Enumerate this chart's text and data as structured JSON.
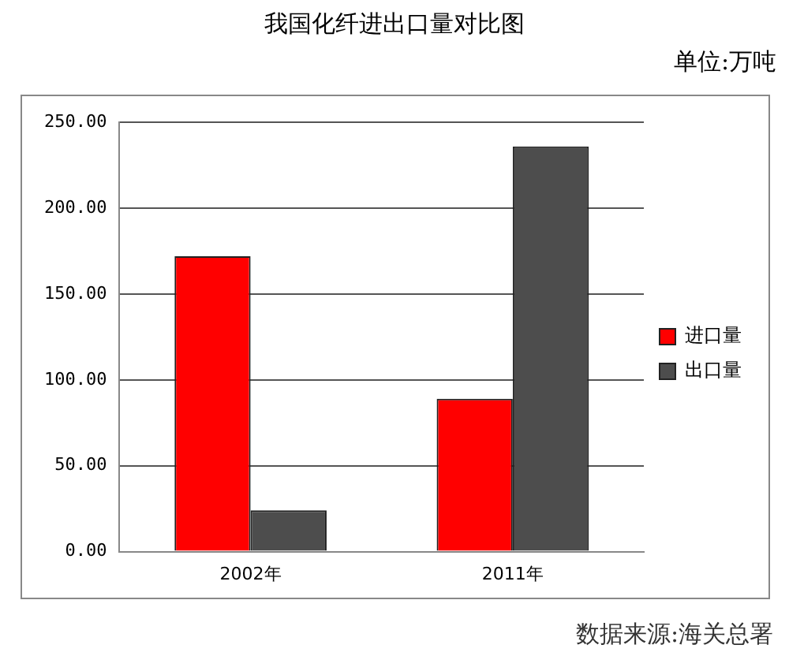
{
  "chart_data": {
    "type": "bar",
    "title": "我国化纤进出口量对比图",
    "subtitle": "单位:万吨",
    "annotations": [
      "数据来源:海关总署"
    ],
    "categories": [
      "2002年",
      "2011年"
    ],
    "series": [
      {
        "name": "进口量",
        "color": "#ff0000",
        "values": [
          172,
          89
        ]
      },
      {
        "name": "出口量",
        "color": "#4d4d4d",
        "values": [
          24,
          236
        ]
      }
    ],
    "ylim": [
      0,
      250
    ],
    "yticks": [
      {
        "value": 0,
        "label": "0.00"
      },
      {
        "value": 50,
        "label": "50.00"
      },
      {
        "value": 100,
        "label": "100.00"
      },
      {
        "value": 150,
        "label": "150.00"
      },
      {
        "value": 200,
        "label": "200.00"
      },
      {
        "value": 250,
        "label": "250.00"
      }
    ],
    "grid": "y",
    "legend": "right"
  }
}
